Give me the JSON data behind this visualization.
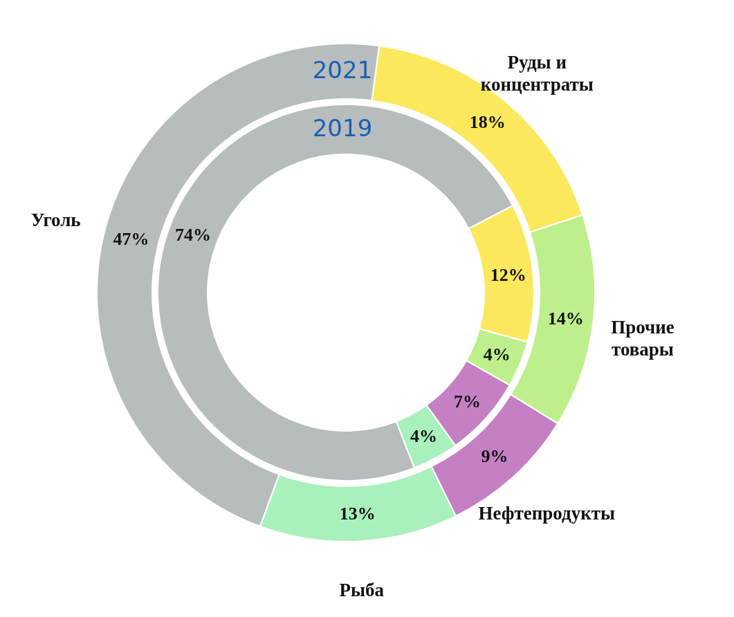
{
  "chart_data": {
    "type": "donut",
    "categories": [
      "Руды и концентраты",
      "Прочие товары",
      "Нефтепродукты",
      "Рыба",
      "Уголь"
    ],
    "colors": [
      "#fbe85c",
      "#bdf08c",
      "#c580c4",
      "#a9f0bc",
      "#b7bcbc"
    ],
    "series": [
      {
        "name": "2021",
        "values": [
          18,
          14,
          9,
          13,
          47
        ],
        "value_labels": [
          "18%",
          "14%",
          "9%",
          "13%",
          "47%"
        ]
      },
      {
        "name": "2019",
        "values": [
          12,
          4,
          7,
          4,
          74
        ],
        "value_labels": [
          "12%",
          "4%",
          "7%",
          "4%",
          "74%"
        ]
      }
    ]
  }
}
